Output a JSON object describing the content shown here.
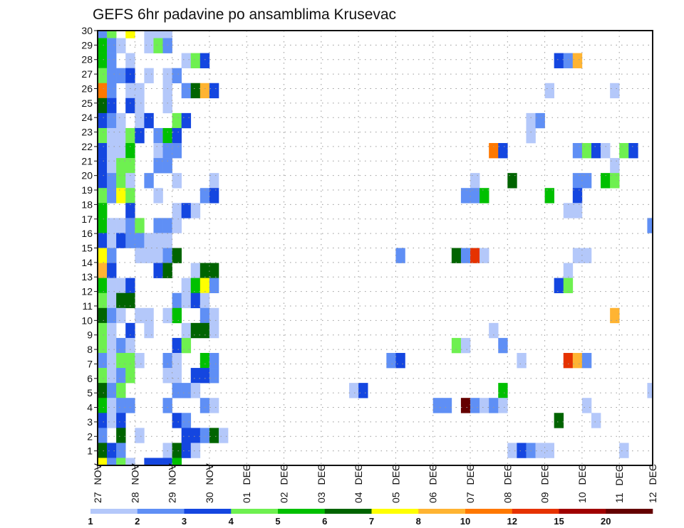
{
  "chart_data": {
    "type": "heatmap",
    "title": "GEFS 6hr padavine po ansamblima Krusevac",
    "xlabel": "",
    "ylabel": "",
    "x_tick_labels": [
      "27 NOV",
      "28 NOV",
      "29 NOV",
      "30 NOV",
      "01 DEC",
      "02 DEC",
      "03 DEC",
      "04 DEC",
      "05 DEC",
      "06 DEC",
      "07 DEC",
      "08 DEC",
      "09 DEC",
      "10 DEC",
      "11 DEC",
      "12 DEC"
    ],
    "y_tick_labels": [
      "1",
      "2",
      "3",
      "4",
      "5",
      "6",
      "7",
      "8",
      "9",
      "10",
      "11",
      "12",
      "13",
      "14",
      "15",
      "16",
      "17",
      "18",
      "19",
      "20",
      "21",
      "22",
      "23",
      "24",
      "25",
      "26",
      "27",
      "28",
      "29",
      "30"
    ],
    "time_step_hours": 6,
    "columns": 60,
    "grid": true,
    "legend": {
      "placement": "bottom",
      "labels": [
        "1",
        "2",
        "3",
        "4",
        "5",
        "6",
        "7",
        "8",
        "10",
        "12",
        "15",
        "20"
      ],
      "colors": [
        "#b4c8fa",
        "#5f8ff5",
        "#1446e0",
        "#6ef050",
        "#00c000",
        "#006400",
        "#ffff00",
        "#ffb432",
        "#ff7800",
        "#e63200",
        "#a00000",
        "#640000"
      ]
    },
    "level_codes": "1-9,a,b,c = legend bins 1..12; '.' = below 1",
    "rows_top_to_bottom": [
      "24.7.111....................................................",
      "521..142....................................................",
      "52.1.....143.....................................328.......",
      "4223.1.12...................................................",
      "92.11..1.2683...................................1......1....",
      "63.31..1....................................................",
      "321.13..43....................................12............",
      "41143.253.................................... 1..............",
      "3115..122.................................93.......2431.43",
      "3144..22...............................................1............",
      "3241.2..1...1...........................1...6......22.54....",
      "4274..1....23..........................225......5..3........",
      "5..3....131.......................................11........",
      "51124.221..................................................2",
      "31322111....................................................",
      "72..11126.......................2.....62a1.........11.......",
      "83....36..166.....................................1.........",
      "5113.....1572....................................34.........",
      "4166....2131................................................",
      "621.11.15..21...................................... ...8.....",
      "41.3.1...1661.............................1.................",
      "4121....34............................41...2................",
      "21441..21..52..................23............1....a82.......",
      "4124...11.332...............................................",
      "624.....221................13..............5...............1",
      "5122...2...21.......................22.c2121........1.......7",
      "313.....32.......................................6...1..",
      "2.6.1....33261..............................................",
      "632....1631.................................13211.......1...",
      "7241.3335..................................................."
    ]
  }
}
